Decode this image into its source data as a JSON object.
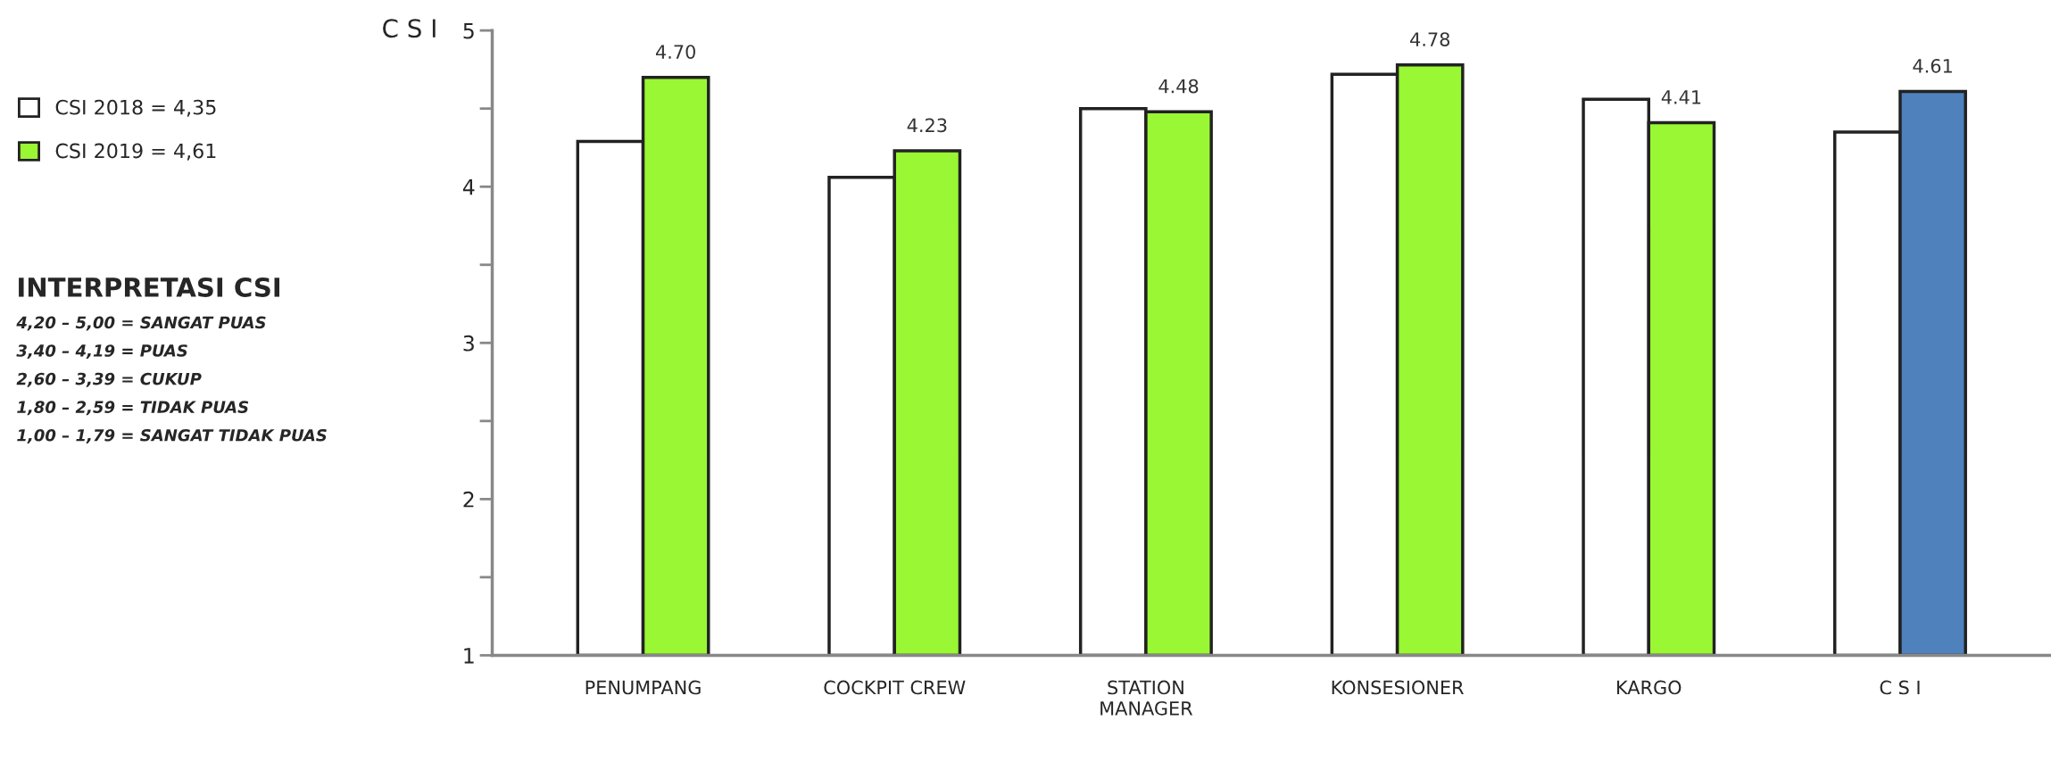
{
  "chart_data": {
    "type": "bar",
    "ylabel": "C S I",
    "categories": [
      "PENUMPANG",
      "COCKPIT CREW",
      "STATION\nMANAGER",
      "KONSESIONER",
      "KARGO",
      "C S I"
    ],
    "series": [
      {
        "name": "CSI 2018 = 4,35",
        "color": "#ffffff",
        "values": [
          4.29,
          4.06,
          4.5,
          4.72,
          4.56,
          4.35
        ]
      },
      {
        "name": "CSI 2019 = 4,61",
        "color": "#99f733",
        "colors": [
          "#99f733",
          "#99f733",
          "#99f733",
          "#99f733",
          "#99f733",
          "#4f81bd"
        ],
        "values": [
          4.7,
          4.23,
          4.48,
          4.78,
          4.41,
          4.61
        ],
        "value_labels": [
          "4.70",
          "4.23",
          "4.48",
          "4.78",
          "4.41",
          "4.61"
        ]
      }
    ],
    "ylim": [
      1,
      5
    ],
    "yticks": [
      1,
      {
        "value": 1.5,
        "label": null
      },
      2,
      {
        "value": 2.5,
        "label": null
      },
      3,
      {
        "value": 3.5,
        "label": null
      },
      4,
      {
        "value": 4.5,
        "label": null
      },
      5
    ],
    "grid": false,
    "legend": "left",
    "annotations": [
      "INTERPRETASI CSI",
      "4,20 – 5,00 = SANGAT PUAS",
      "3,40 – 4,19 = PUAS",
      "2,60 – 3,39 = CUKUP",
      "1,80 – 2,59 = TIDAK PUAS",
      "1,00 – 1,79 = SANGAT TIDAK PUAS"
    ]
  }
}
